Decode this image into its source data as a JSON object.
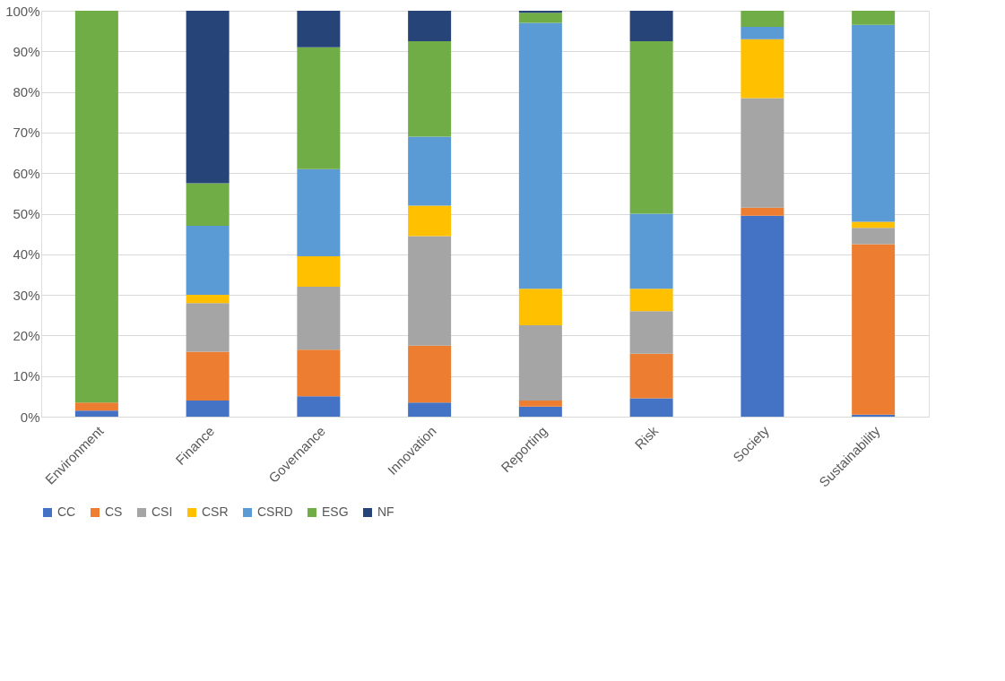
{
  "chart_data": {
    "type": "bar",
    "stacked": true,
    "categories": [
      "Environment",
      "Finance",
      "Governance",
      "Innovation",
      "Reporting",
      "Risk",
      "Society",
      "Sustainability"
    ],
    "series": [
      {
        "name": "CC",
        "color": "#4472c4",
        "values": [
          1.5,
          4,
          5,
          3.5,
          2.5,
          4.5,
          49.5,
          0.5
        ]
      },
      {
        "name": "CS",
        "color": "#ed7d31",
        "values": [
          2,
          12,
          11.5,
          14,
          1.5,
          11,
          2,
          42
        ]
      },
      {
        "name": "CSI",
        "color": "#a5a5a5",
        "values": [
          0,
          12,
          15.5,
          27,
          18.5,
          10.5,
          27,
          4
        ]
      },
      {
        "name": "CSR",
        "color": "#ffc000",
        "values": [
          0,
          2,
          7.5,
          7.5,
          9,
          5.5,
          14.5,
          1.5
        ]
      },
      {
        "name": "CSRD",
        "color": "#5b9bd5",
        "values": [
          0,
          17,
          21.5,
          17,
          65.5,
          18.5,
          3,
          48.5
        ]
      },
      {
        "name": "ESG",
        "color": "#70ad47",
        "values": [
          96.5,
          10.5,
          30,
          23.5,
          2.5,
          42.5,
          4,
          3.5
        ]
      },
      {
        "name": "NF",
        "color": "#264478",
        "values": [
          0,
          42.5,
          9,
          7.5,
          0.5,
          7.5,
          0,
          0
        ]
      }
    ],
    "ylim": [
      0,
      100
    ],
    "yticks": [
      {
        "value": 0,
        "label": "0%"
      },
      {
        "value": 10,
        "label": "10%"
      },
      {
        "value": 20,
        "label": "20%"
      },
      {
        "value": 30,
        "label": "30%"
      },
      {
        "value": 40,
        "label": "40%"
      },
      {
        "value": 50,
        "label": "50%"
      },
      {
        "value": 60,
        "label": "60%"
      },
      {
        "value": 70,
        "label": "70%"
      },
      {
        "value": 80,
        "label": "80%"
      },
      {
        "value": 90,
        "label": "90%"
      },
      {
        "value": 100,
        "label": "100%"
      }
    ],
    "grid": "y",
    "legend": "bottom"
  }
}
